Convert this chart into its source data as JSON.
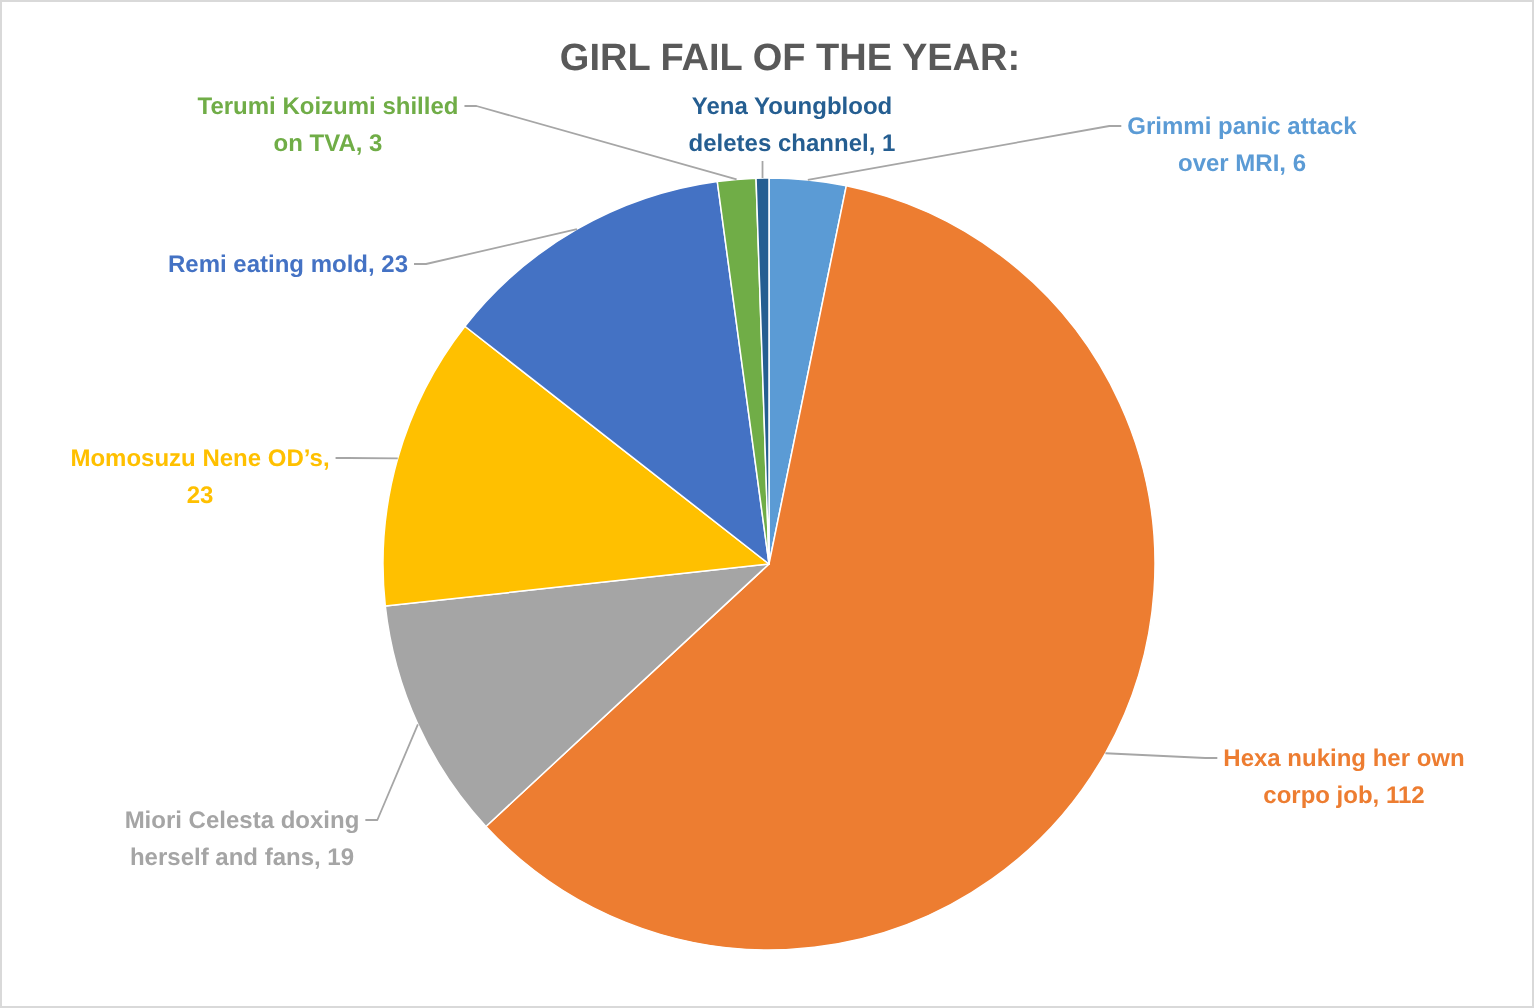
{
  "chart_data": {
    "type": "pie",
    "title": "GIRL FAIL OF THE YEAR:",
    "categories": [
      "Grimmi panic attack over MRI, 6",
      "Hexa nuking her own corpo job, 112",
      "Miori Celesta doxing herself and fans, 19",
      "Momosuzu Nene OD’s, 23",
      "Remi eating mold, 23",
      "Terumi Koizumi shilled on TVA, 3",
      "Yena Youngblood deletes channel, 1"
    ],
    "values": [
      6,
      112,
      19,
      23,
      23,
      3,
      1
    ],
    "colors": [
      "#5b9bd5",
      "#ed7d31",
      "#a5a5a5",
      "#ffc000",
      "#4472c4",
      "#70ad47",
      "#255e91"
    ]
  }
}
